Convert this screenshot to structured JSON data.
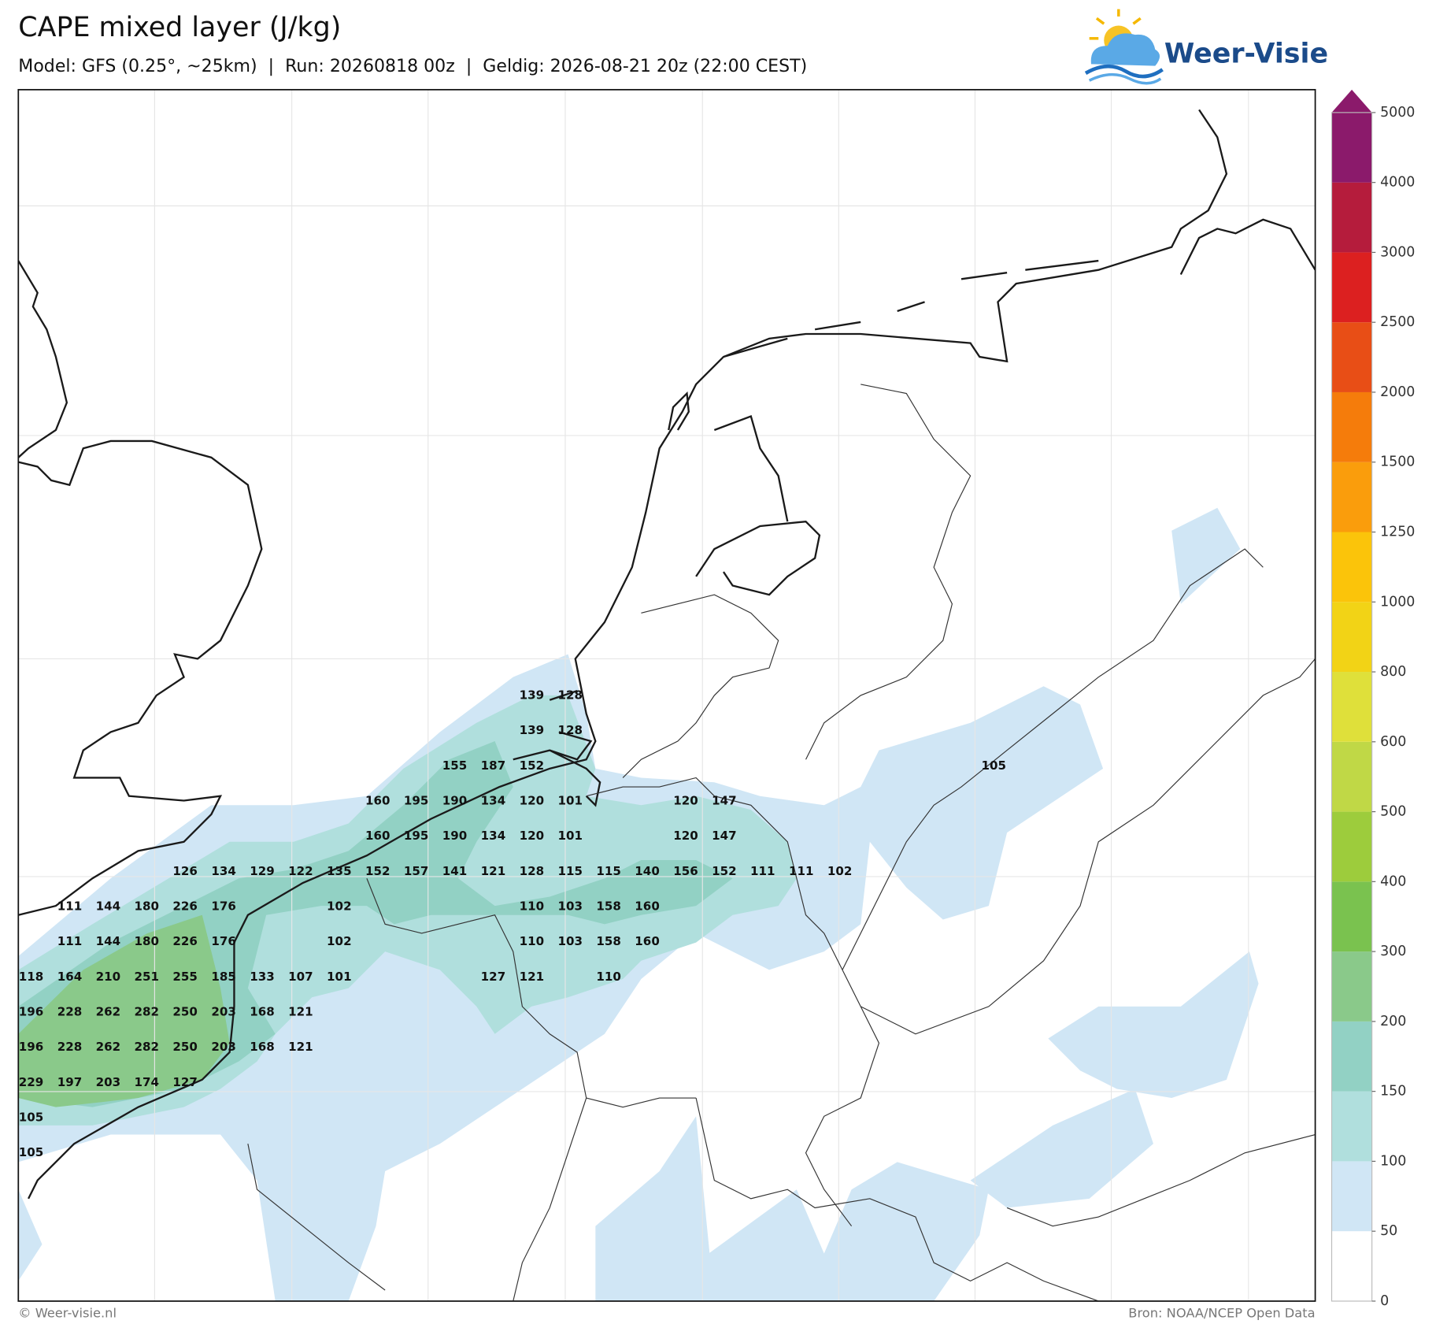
{
  "header": {
    "title": "CAPE mixed layer (J/kg)",
    "subtitle": "Model: GFS (0.25°, ~25km)  |  Run: 20260818 00z  |  Geldig: 2026-08-21 20z (22:00 CEST)",
    "logo": "Weer-Visie"
  },
  "colorbar": {
    "levels": [
      0,
      50,
      100,
      150,
      200,
      300,
      400,
      500,
      600,
      800,
      1000,
      1250,
      1500,
      2000,
      2500,
      3000,
      4000,
      5000
    ],
    "colors": [
      "#ffffff",
      "#d0e6f5",
      "#b0dfdd",
      "#92d1c4",
      "#8ac98a",
      "#7ac24f",
      "#9dcc3c",
      "#c0d846",
      "#dfe03a",
      "#f2d316",
      "#fbc40a",
      "#fa9d0c",
      "#f57c0b",
      "#e84e16",
      "#dc2020",
      "#b51c3c",
      "#8b1a6b"
    ]
  },
  "labels": {
    "rows": [
      [
        null,
        null,
        null,
        null,
        null,
        null,
        null,
        null,
        null,
        null,
        null,
        null,
        null,
        139,
        128,
        null,
        null,
        null,
        null,
        null,
        null,
        null,
        null,
        null,
        null,
        null
      ],
      [
        null,
        null,
        null,
        null,
        null,
        null,
        null,
        null,
        null,
        null,
        null,
        null,
        null,
        139,
        128,
        null,
        null,
        null,
        null,
        null,
        null,
        null,
        null,
        null,
        null,
        null
      ],
      [
        null,
        null,
        null,
        null,
        null,
        null,
        null,
        null,
        null,
        null,
        null,
        155,
        187,
        152,
        null,
        null,
        null,
        null,
        null,
        null,
        null,
        null,
        null,
        null,
        null,
        105
      ],
      [
        null,
        null,
        null,
        null,
        null,
        null,
        null,
        null,
        null,
        160,
        195,
        190,
        134,
        120,
        101,
        null,
        null,
        120,
        147,
        null,
        null,
        null,
        null,
        null,
        null,
        null
      ],
      [
        null,
        null,
        null,
        null,
        null,
        null,
        null,
        null,
        null,
        160,
        195,
        190,
        134,
        120,
        101,
        null,
        null,
        120,
        147,
        null,
        null,
        null,
        null,
        null,
        null,
        null
      ],
      [
        null,
        null,
        null,
        null,
        126,
        134,
        129,
        122,
        135,
        152,
        157,
        141,
        121,
        128,
        115,
        115,
        140,
        156,
        152,
        111,
        111,
        102,
        null,
        null,
        null,
        null
      ],
      [
        null,
        111,
        144,
        180,
        226,
        176,
        null,
        null,
        102,
        null,
        null,
        null,
        null,
        110,
        103,
        158,
        160,
        null,
        null,
        null,
        null,
        null,
        null,
        null,
        null,
        null
      ],
      [
        null,
        111,
        144,
        180,
        226,
        176,
        null,
        null,
        102,
        null,
        null,
        null,
        null,
        110,
        103,
        158,
        160,
        null,
        null,
        null,
        null,
        null,
        null,
        null,
        null,
        null
      ],
      [
        118,
        164,
        210,
        251,
        255,
        185,
        133,
        107,
        101,
        null,
        null,
        null,
        127,
        121,
        null,
        110,
        null,
        null,
        null,
        null,
        null,
        null,
        null,
        null,
        null,
        null
      ],
      [
        196,
        228,
        262,
        282,
        250,
        203,
        168,
        121,
        null,
        null,
        null,
        null,
        null,
        null,
        null,
        null,
        null,
        null,
        null,
        null,
        null,
        null,
        null,
        null,
        null,
        null
      ],
      [
        196,
        228,
        262,
        282,
        250,
        203,
        168,
        121,
        null,
        null,
        null,
        null,
        null,
        null,
        null,
        null,
        null,
        null,
        null,
        null,
        null,
        null,
        null,
        null,
        null,
        null
      ],
      [
        229,
        197,
        203,
        174,
        127,
        null,
        null,
        null,
        null,
        null,
        null,
        null,
        null,
        null,
        null,
        null,
        null,
        null,
        null,
        null,
        null,
        null,
        null,
        null,
        null,
        null
      ],
      [
        105,
        null,
        null,
        null,
        null,
        null,
        null,
        null,
        null,
        null,
        null,
        null,
        null,
        null,
        null,
        null,
        null,
        null,
        null,
        null,
        null,
        null,
        null,
        null,
        null,
        null
      ],
      [
        105,
        null,
        null,
        null,
        null,
        null,
        null,
        null,
        null,
        null,
        null,
        null,
        null,
        null,
        null,
        null,
        null,
        null,
        null,
        null,
        null,
        null,
        null,
        null,
        null,
        null
      ]
    ]
  },
  "footer": {
    "left": "© Weer-visie.nl",
    "right": "Bron: NOAA/NCEP Open Data"
  }
}
